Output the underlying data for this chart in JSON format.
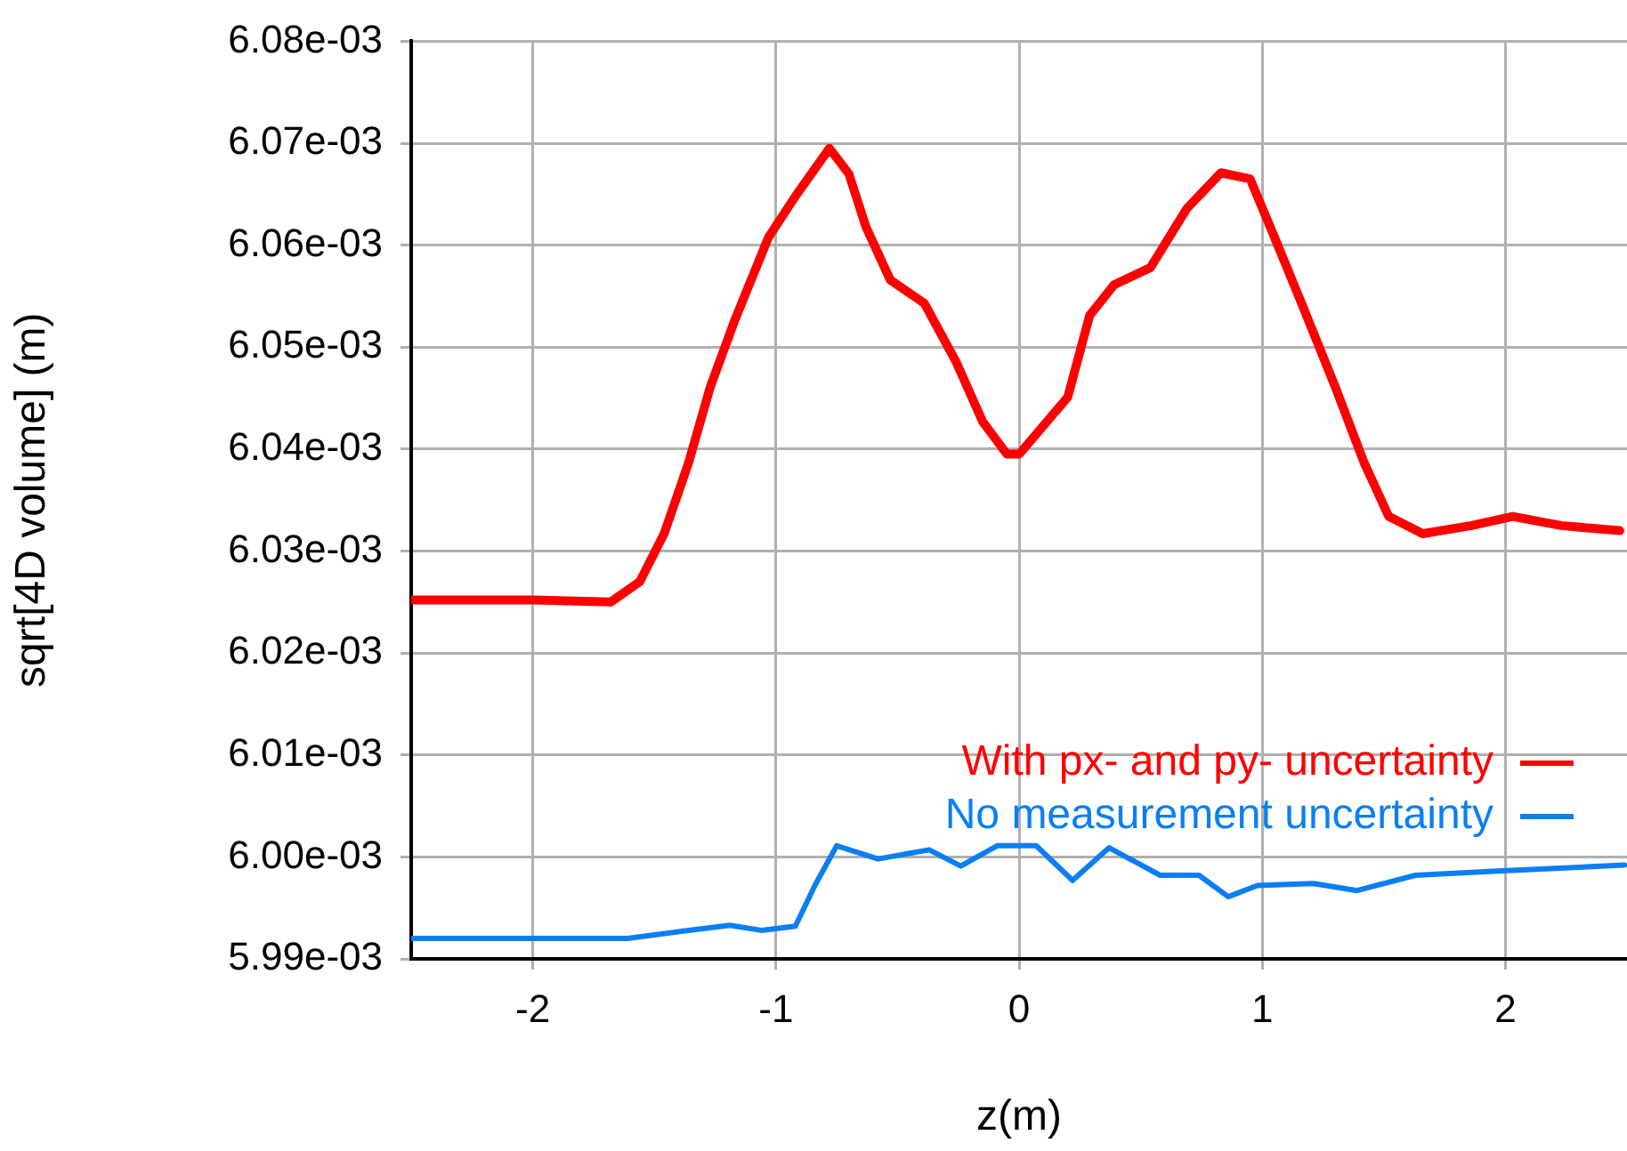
{
  "chart_data": {
    "type": "line",
    "xlabel": "z(m)",
    "ylabel": "sqrt[4D volume] (m)",
    "xlim": [
      -2.5,
      2.5
    ],
    "xticks": [
      -2,
      -1,
      0,
      1,
      2
    ],
    "ylim": [
      0.00599,
      0.00608
    ],
    "yticks": [
      {
        "value": 0.00599,
        "label": "5.99e-03"
      },
      {
        "value": 0.006,
        "label": "6.00e-03"
      },
      {
        "value": 0.00601,
        "label": "6.01e-03"
      },
      {
        "value": 0.00602,
        "label": "6.02e-03"
      },
      {
        "value": 0.00603,
        "label": "6.03e-03"
      },
      {
        "value": 0.00604,
        "label": "6.04e-03"
      },
      {
        "value": 0.00605,
        "label": "6.05e-03"
      },
      {
        "value": 0.00606,
        "label": "6.06e-03"
      },
      {
        "value": 0.00607,
        "label": "6.07e-03"
      },
      {
        "value": 0.00608,
        "label": "6.08e-03"
      }
    ],
    "grid": true,
    "legend": "bottom right",
    "marker": "none",
    "line_style": "solid",
    "series": [
      {
        "name": "With px- and py- uncertainty",
        "color": "#ff0000",
        "x": [
          -2.5,
          -2.0,
          -1.68,
          -1.56,
          -1.46,
          -1.36,
          -1.27,
          -1.17,
          -1.03,
          -0.92,
          -0.78,
          -0.7,
          -0.63,
          -0.53,
          -0.39,
          -0.26,
          -0.15,
          -0.05,
          0.0,
          0.2,
          0.29,
          0.39,
          0.54,
          0.69,
          0.83,
          0.95,
          1.05,
          1.17,
          1.3,
          1.42,
          1.52,
          1.66,
          1.86,
          2.03,
          2.23,
          2.47
        ],
        "values": [
          0.0060252,
          0.0060252,
          0.006025,
          0.006027,
          0.0060317,
          0.0060386,
          0.0060461,
          0.0060526,
          0.0060608,
          0.0060648,
          0.0060695,
          0.006067,
          0.0060618,
          0.0060566,
          0.0060543,
          0.0060486,
          0.0060427,
          0.0060395,
          0.0060395,
          0.0060451,
          0.0060531,
          0.0060561,
          0.0060578,
          0.0060636,
          0.0060671,
          0.0060665,
          0.0060608,
          0.0060538,
          0.0060461,
          0.0060386,
          0.0060334,
          0.0060317,
          0.0060325,
          0.0060334,
          0.0060325,
          0.006032
        ]
      },
      {
        "name": "No measurement uncertainty",
        "color": "#0a7ff5",
        "x": [
          -2.5,
          -1.61,
          -1.36,
          -1.19,
          -1.06,
          -0.92,
          -0.84,
          -0.75,
          -0.58,
          -0.37,
          -0.24,
          -0.09,
          0.07,
          0.22,
          0.37,
          0.58,
          0.74,
          0.86,
          0.98,
          1.21,
          1.39,
          1.63,
          1.95,
          2.49
        ],
        "values": [
          0.005992,
          0.005992,
          0.0059928,
          0.0059933,
          0.0059928,
          0.0059932,
          0.0059972,
          0.0060011,
          0.0059998,
          0.0060007,
          0.0059991,
          0.0060011,
          0.0060011,
          0.0059977,
          0.0060009,
          0.0059982,
          0.0059982,
          0.0059961,
          0.0059972,
          0.0059974,
          0.0059967,
          0.0059982,
          0.0059986,
          0.0059992
        ]
      }
    ]
  }
}
